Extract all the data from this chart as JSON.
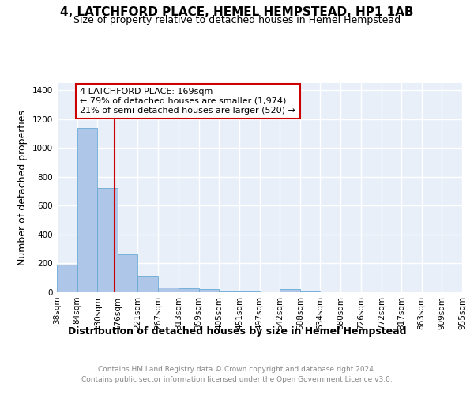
{
  "title": "4, LATCHFORD PLACE, HEMEL HEMPSTEAD, HP1 1AB",
  "subtitle": "Size of property relative to detached houses in Hemel Hempstead",
  "xlabel": "Distribution of detached houses by size in Hemel Hempstead",
  "ylabel": "Number of detached properties",
  "footnote1": "Contains HM Land Registry data © Crown copyright and database right 2024.",
  "footnote2": "Contains public sector information licensed under the Open Government Licence v3.0.",
  "bar_left_edges": [
    38,
    84,
    130,
    176,
    221,
    267,
    313,
    359,
    405,
    451,
    497,
    542,
    588,
    634,
    680,
    726,
    772,
    817,
    863,
    909
  ],
  "bar_widths": [
    46,
    46,
    46,
    45,
    46,
    46,
    46,
    46,
    46,
    46,
    45,
    46,
    46,
    46,
    46,
    46,
    45,
    46,
    46,
    46
  ],
  "bar_heights": [
    190,
    1140,
    720,
    265,
    110,
    35,
    30,
    20,
    10,
    10,
    5,
    20,
    10,
    0,
    0,
    0,
    0,
    0,
    0,
    0
  ],
  "tick_labels": [
    "38sqm",
    "84sqm",
    "130sqm",
    "176sqm",
    "221sqm",
    "267sqm",
    "313sqm",
    "359sqm",
    "405sqm",
    "451sqm",
    "497sqm",
    "542sqm",
    "588sqm",
    "634sqm",
    "680sqm",
    "726sqm",
    "772sqm",
    "817sqm",
    "863sqm",
    "909sqm",
    "955sqm"
  ],
  "bar_color": "#aec6e8",
  "bar_edgecolor": "#6aaad4",
  "property_line_x": 169,
  "property_line_color": "#cc0000",
  "annotation_line1": "4 LATCHFORD PLACE: 169sqm",
  "annotation_line2": "← 79% of detached houses are smaller (1,974)",
  "annotation_line3": "21% of semi-detached houses are larger (520) →",
  "annotation_box_color": "#cc0000",
  "annotation_text_color": "#000000",
  "ylim": [
    0,
    1450
  ],
  "yticks": [
    0,
    200,
    400,
    600,
    800,
    1000,
    1200,
    1400
  ],
  "background_color": "#e8eff8",
  "grid_color": "#ffffff",
  "title_fontsize": 11,
  "subtitle_fontsize": 9,
  "ylabel_fontsize": 9,
  "xlabel_fontsize": 9,
  "tick_fontsize": 7.5,
  "annotation_fontsize": 8,
  "footnote_fontsize": 6.5
}
